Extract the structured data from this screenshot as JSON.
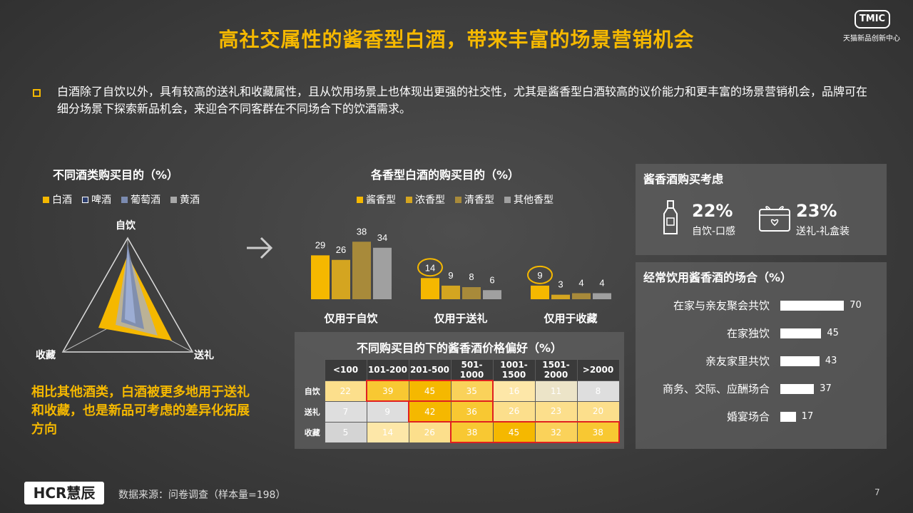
{
  "title": "高社交属性的酱香型白酒，带来丰富的场景营销机会",
  "brand": {
    "logo": "TMIC",
    "sub": "天猫新品创新中心"
  },
  "intro": "白酒除了自饮以外，具有较高的送礼和收藏属性，且从饮用场景上也体现出更强的社交性，尤其是酱香型白酒较高的议价能力和更丰富的场景营销机会，品牌可在细分场景下探索新品机会，来迎合不同客群在不同场合下的饮酒需求。",
  "colors": {
    "accent": "#f5b800",
    "baijiu": "#f5b800",
    "beer": "#2c3e6e",
    "wine": "#7b8bb0",
    "huangjiu": "#a8a8a8"
  },
  "radar": {
    "title": "不同酒类购买目的（%）",
    "legend": [
      "白酒",
      "啤酒",
      "葡萄酒",
      "黄酒"
    ],
    "axes": [
      "自饮",
      "送礼",
      "收藏"
    ]
  },
  "conclusion": "相比其他酒类，白酒被更多地用于送礼和收藏，也是新品可考虑的差异化拓展方向",
  "chart_data": [
    {
      "type": "bar",
      "title": "各香型白酒的购买目的（%）",
      "categories": [
        "仅用于自饮",
        "仅用于送礼",
        "仅用于收藏"
      ],
      "series": [
        {
          "name": "酱香型",
          "values": [
            29,
            14,
            9
          ],
          "color": "#f5b800"
        },
        {
          "name": "浓香型",
          "values": [
            26,
            9,
            3
          ],
          "color": "#d4a520"
        },
        {
          "name": "清香型",
          "values": [
            38,
            8,
            4
          ],
          "color": "#a88a3a"
        },
        {
          "name": "其他香型",
          "values": [
            34,
            6,
            4
          ],
          "color": "#a0a0a0"
        }
      ],
      "ylim": [
        0,
        40
      ]
    },
    {
      "type": "heatmap",
      "title": "不同购买目的下的酱香酒价格偏好（%）",
      "columns": [
        "<100",
        "101-200",
        "201-500",
        "501-1000",
        "1001-1500",
        "1501-2000",
        ">2000"
      ],
      "rows": [
        "自饮",
        "送礼",
        "收藏"
      ],
      "values": [
        [
          22,
          39,
          45,
          35,
          16,
          11,
          8
        ],
        [
          7,
          9,
          42,
          36,
          26,
          23,
          20
        ],
        [
          5,
          14,
          26,
          38,
          45,
          32,
          38
        ]
      ]
    },
    {
      "type": "bar",
      "orientation": "horizontal",
      "title": "经常饮用酱香酒的场合（%）",
      "categories": [
        "在家与亲友聚会共饮",
        "在家独饮",
        "亲友家里共饮",
        "商务、交际、应酬场合",
        "婚宴场合"
      ],
      "values": [
        70,
        45,
        43,
        37,
        17
      ],
      "xlim": [
        0,
        100
      ]
    }
  ],
  "considerations": {
    "title": "酱香酒购买考虑",
    "items": [
      {
        "pct": "22%",
        "label": "自饮-口感",
        "icon": "bottle-icon"
      },
      {
        "pct": "23%",
        "label": "送礼-礼盒装",
        "icon": "gift-box-icon"
      }
    ]
  },
  "footer": {
    "logo": "HCR慧辰",
    "source": "数据来源：问卷调查（样本量=198）",
    "page": "7"
  }
}
